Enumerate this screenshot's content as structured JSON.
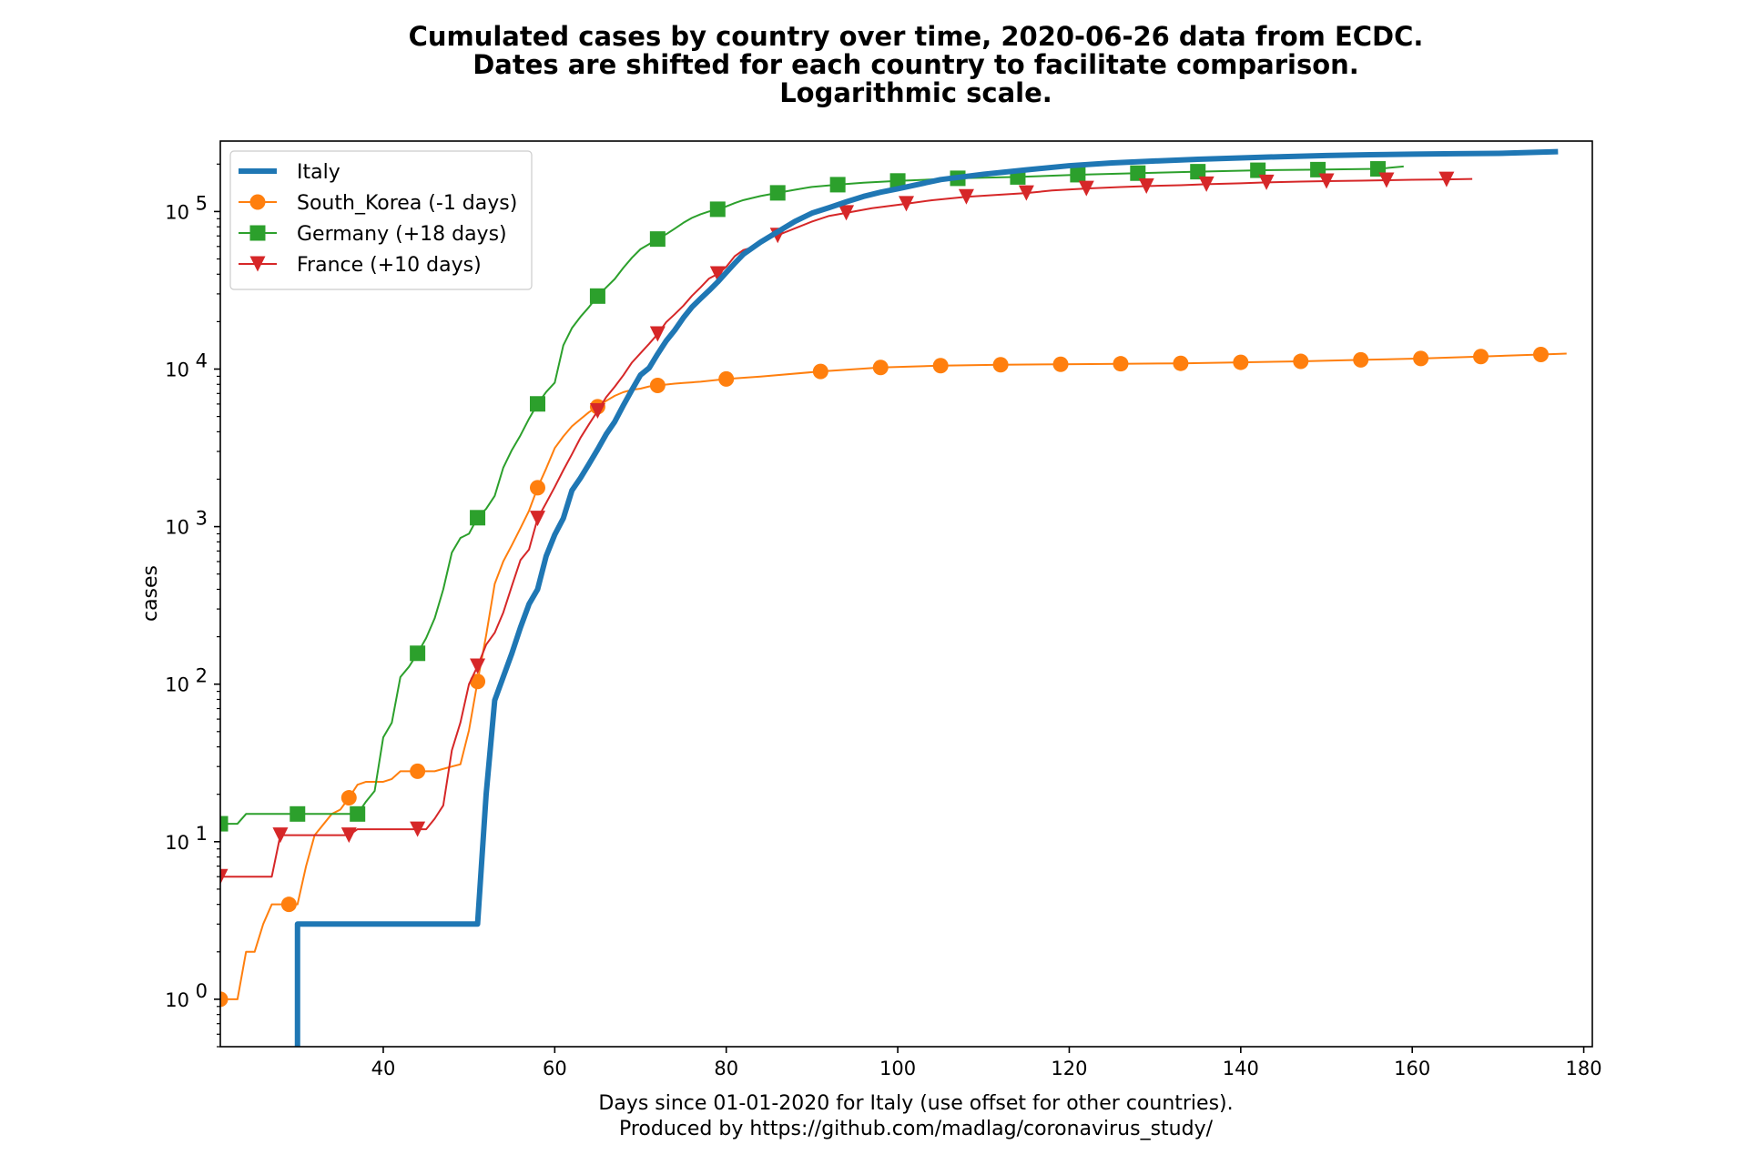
{
  "chart_data": {
    "type": "line",
    "title_lines": [
      "Cumulated cases by country over time, 2020-06-26 data from ECDC.",
      "Dates are shifted for each country to facilitate comparison.",
      "Logarithmic scale."
    ],
    "xlabel_lines": [
      "Days since 01-01-2020 for Italy (use offset for other countries).",
      "Produced by https://github.com/madlag/coronavirus_study/"
    ],
    "ylabel": "cases",
    "y_scale": "log",
    "xlim": [
      21,
      181
    ],
    "ylim": [
      0.5,
      280000
    ],
    "x_ticks": [
      {
        "value": 40,
        "label": "40"
      },
      {
        "value": 60,
        "label": "60"
      },
      {
        "value": 80,
        "label": "80"
      },
      {
        "value": 100,
        "label": "100"
      },
      {
        "value": 120,
        "label": "120"
      },
      {
        "value": 140,
        "label": "140"
      },
      {
        "value": 160,
        "label": "160"
      },
      {
        "value": 180,
        "label": "180"
      }
    ],
    "y_ticks": [
      {
        "value": 1,
        "base": "10",
        "exp": "0"
      },
      {
        "value": 10,
        "base": "10",
        "exp": "1"
      },
      {
        "value": 100,
        "base": "10",
        "exp": "2"
      },
      {
        "value": 1000,
        "base": "10",
        "exp": "3"
      },
      {
        "value": 10000,
        "base": "10",
        "exp": "4"
      },
      {
        "value": 100000,
        "base": "10",
        "exp": "5"
      }
    ],
    "grid": false,
    "legend_position": "upper-left",
    "series": [
      {
        "name": "Italy",
        "color": "#1f77b4",
        "marker": "none",
        "line_width": "thick",
        "points": [
          [
            30,
            0.3
          ],
          [
            30,
            3
          ],
          [
            51,
            3
          ],
          [
            52,
            20
          ],
          [
            53,
            79
          ],
          [
            55,
            157
          ],
          [
            56,
            229
          ],
          [
            57,
            322
          ],
          [
            58,
            400
          ],
          [
            59,
            650
          ],
          [
            60,
            888
          ],
          [
            61,
            1128
          ],
          [
            62,
            1694
          ],
          [
            63,
            2036
          ],
          [
            64,
            2502
          ],
          [
            65,
            3089
          ],
          [
            66,
            3858
          ],
          [
            67,
            4636
          ],
          [
            68,
            5883
          ],
          [
            69,
            7375
          ],
          [
            70,
            9172
          ],
          [
            71,
            10149
          ],
          [
            72,
            12462
          ],
          [
            73,
            15113
          ],
          [
            74,
            17660
          ],
          [
            75,
            21157
          ],
          [
            76,
            24747
          ],
          [
            77,
            27980
          ],
          [
            78,
            31506
          ],
          [
            79,
            35713
          ],
          [
            80,
            41035
          ],
          [
            81,
            47021
          ],
          [
            82,
            53578
          ],
          [
            84,
            63927
          ],
          [
            86,
            74386
          ],
          [
            88,
            86498
          ],
          [
            90,
            97689
          ],
          [
            92,
            105792
          ],
          [
            94,
            115242
          ],
          [
            96,
            124632
          ],
          [
            98,
            132547
          ],
          [
            100,
            139422
          ],
          [
            105,
            159516
          ],
          [
            110,
            172434
          ],
          [
            115,
            183957
          ],
          [
            120,
            195351
          ],
          [
            125,
            203591
          ],
          [
            130,
            209328
          ],
          [
            135,
            214457
          ],
          [
            140,
            219070
          ],
          [
            145,
            223096
          ],
          [
            150,
            226699
          ],
          [
            155,
            229327
          ],
          [
            160,
            231139
          ],
          [
            165,
            232664
          ],
          [
            170,
            233836
          ],
          [
            177,
            239706
          ]
        ]
      },
      {
        "name": "South_Korea (-1 days)",
        "color": "#ff7f0e",
        "marker": "circle",
        "line_width": "thin",
        "points": [
          [
            21,
            1
          ],
          [
            23,
            1
          ],
          [
            24,
            2
          ],
          [
            25,
            2
          ],
          [
            26,
            3
          ],
          [
            27,
            4
          ],
          [
            29,
            4
          ],
          [
            30,
            4
          ],
          [
            31,
            7
          ],
          [
            32,
            11
          ],
          [
            34,
            15
          ],
          [
            35,
            16
          ],
          [
            36,
            19
          ],
          [
            37,
            23
          ],
          [
            38,
            24
          ],
          [
            40,
            24
          ],
          [
            41,
            25
          ],
          [
            42,
            28
          ],
          [
            44,
            28
          ],
          [
            46,
            28
          ],
          [
            47,
            29
          ],
          [
            48,
            30
          ],
          [
            49,
            31
          ],
          [
            50,
            51
          ],
          [
            51,
            104
          ],
          [
            52,
            204
          ],
          [
            53,
            433
          ],
          [
            54,
            602
          ],
          [
            55,
            763
          ],
          [
            56,
            977
          ],
          [
            57,
            1261
          ],
          [
            58,
            1766
          ],
          [
            59,
            2337
          ],
          [
            60,
            3150
          ],
          [
            61,
            3736
          ],
          [
            62,
            4335
          ],
          [
            63,
            4812
          ],
          [
            64,
            5328
          ],
          [
            65,
            5766
          ],
          [
            66,
            6284
          ],
          [
            67,
            6767
          ],
          [
            68,
            7134
          ],
          [
            69,
            7382
          ],
          [
            70,
            7513
          ],
          [
            71,
            7755
          ],
          [
            72,
            7869
          ],
          [
            73,
            7979
          ],
          [
            74,
            8086
          ],
          [
            75,
            8162
          ],
          [
            76,
            8236
          ],
          [
            77,
            8320
          ],
          [
            80,
            8652
          ],
          [
            84,
            8961
          ],
          [
            91,
            9661
          ],
          [
            98,
            10237
          ],
          [
            105,
            10512
          ],
          [
            112,
            10653
          ],
          [
            119,
            10728
          ],
          [
            126,
            10804
          ],
          [
            133,
            10874
          ],
          [
            140,
            11037
          ],
          [
            147,
            11190
          ],
          [
            154,
            11441
          ],
          [
            161,
            11668
          ],
          [
            168,
            12003
          ],
          [
            175,
            12373
          ],
          [
            178,
            12535
          ]
        ]
      },
      {
        "name": "Germany (+18 days)",
        "color": "#2ca02c",
        "marker": "square",
        "line_width": "thin",
        "points": [
          [
            21,
            13
          ],
          [
            23,
            13
          ],
          [
            24,
            15
          ],
          [
            30,
            15
          ],
          [
            36,
            15
          ],
          [
            37,
            15
          ],
          [
            38,
            18
          ],
          [
            39,
            21
          ],
          [
            40,
            46
          ],
          [
            41,
            57
          ],
          [
            42,
            111
          ],
          [
            43,
            129
          ],
          [
            44,
            157
          ],
          [
            45,
            196
          ],
          [
            46,
            262
          ],
          [
            47,
            400
          ],
          [
            48,
            684
          ],
          [
            49,
            847
          ],
          [
            50,
            902
          ],
          [
            51,
            1139
          ],
          [
            52,
            1296
          ],
          [
            53,
            1567
          ],
          [
            54,
            2369
          ],
          [
            55,
            3062
          ],
          [
            56,
            3795
          ],
          [
            57,
            4838
          ],
          [
            58,
            6012
          ],
          [
            59,
            7156
          ],
          [
            60,
            8198
          ],
          [
            61,
            14138
          ],
          [
            62,
            18187
          ],
          [
            63,
            21463
          ],
          [
            64,
            24774
          ],
          [
            65,
            29056
          ],
          [
            66,
            32986
          ],
          [
            67,
            37323
          ],
          [
            68,
            43938
          ],
          [
            69,
            50871
          ],
          [
            70,
            57695
          ],
          [
            71,
            62095
          ],
          [
            72,
            66885
          ],
          [
            73,
            71808
          ],
          [
            74,
            77872
          ],
          [
            75,
            84794
          ],
          [
            76,
            91159
          ],
          [
            77,
            96092
          ],
          [
            78,
            100123
          ],
          [
            79,
            103375
          ],
          [
            80,
            107663
          ],
          [
            81,
            113296
          ],
          [
            82,
            118181
          ],
          [
            84,
            125452
          ],
          [
            86,
            131359
          ],
          [
            88,
            137439
          ],
          [
            90,
            143342
          ],
          [
            93,
            148046
          ],
          [
            96,
            152438
          ],
          [
            100,
            156337
          ],
          [
            107,
            162496
          ],
          [
            114,
            165745
          ],
          [
            121,
            171306
          ],
          [
            128,
            175210
          ],
          [
            135,
            179021
          ],
          [
            142,
            182764
          ],
          [
            149,
            184472
          ],
          [
            156,
            186506
          ],
          [
            159,
            193371
          ]
        ]
      },
      {
        "name": "France (+10 days)",
        "color": "#d62728",
        "marker": "triangle-down",
        "line_width": "thin",
        "points": [
          [
            21,
            6
          ],
          [
            24,
            6
          ],
          [
            27,
            6
          ],
          [
            28,
            11
          ],
          [
            31,
            11
          ],
          [
            36,
            11
          ],
          [
            37,
            12
          ],
          [
            38,
            12
          ],
          [
            44,
            12
          ],
          [
            45,
            12
          ],
          [
            46,
            14
          ],
          [
            47,
            17
          ],
          [
            48,
            38
          ],
          [
            49,
            57
          ],
          [
            50,
            100
          ],
          [
            51,
            130
          ],
          [
            52,
            178
          ],
          [
            53,
            212
          ],
          [
            54,
            285
          ],
          [
            55,
            420
          ],
          [
            56,
            613
          ],
          [
            57,
            716
          ],
          [
            58,
            1126
          ],
          [
            59,
            1412
          ],
          [
            60,
            1784
          ],
          [
            61,
            2281
          ],
          [
            62,
            2876
          ],
          [
            63,
            3661
          ],
          [
            64,
            4469
          ],
          [
            65,
            5423
          ],
          [
            66,
            6633
          ],
          [
            67,
            7730
          ],
          [
            68,
            9134
          ],
          [
            69,
            10995
          ],
          [
            70,
            12612
          ],
          [
            71,
            14459
          ],
          [
            72,
            16689
          ],
          [
            73,
            19856
          ],
          [
            74,
            22304
          ],
          [
            75,
            25233
          ],
          [
            76,
            29155
          ],
          [
            77,
            32964
          ],
          [
            78,
            37575
          ],
          [
            79,
            40174
          ],
          [
            80,
            44550
          ],
          [
            81,
            52128
          ],
          [
            82,
            56989
          ],
          [
            83,
            59105
          ],
          [
            84,
            64338
          ],
          [
            85,
            68605
          ],
          [
            86,
            70478
          ],
          [
            87,
            74390
          ],
          [
            88,
            78167
          ],
          [
            90,
            86334
          ],
          [
            92,
            93790
          ],
          [
            94,
            98010
          ],
          [
            97,
            105000
          ],
          [
            101,
            112000
          ],
          [
            104,
            118000
          ],
          [
            108,
            124000
          ],
          [
            112,
            128000
          ],
          [
            115,
            131000
          ],
          [
            118,
            136000
          ],
          [
            122,
            140000
          ],
          [
            126,
            143000
          ],
          [
            129,
            145000
          ],
          [
            133,
            147000
          ],
          [
            136,
            149000
          ],
          [
            140,
            151000
          ],
          [
            143,
            153000
          ],
          [
            147,
            155000
          ],
          [
            150,
            156000
          ],
          [
            154,
            157000
          ],
          [
            157,
            158000
          ],
          [
            160,
            159000
          ],
          [
            164,
            160000
          ],
          [
            167,
            161000
          ]
        ]
      }
    ]
  }
}
